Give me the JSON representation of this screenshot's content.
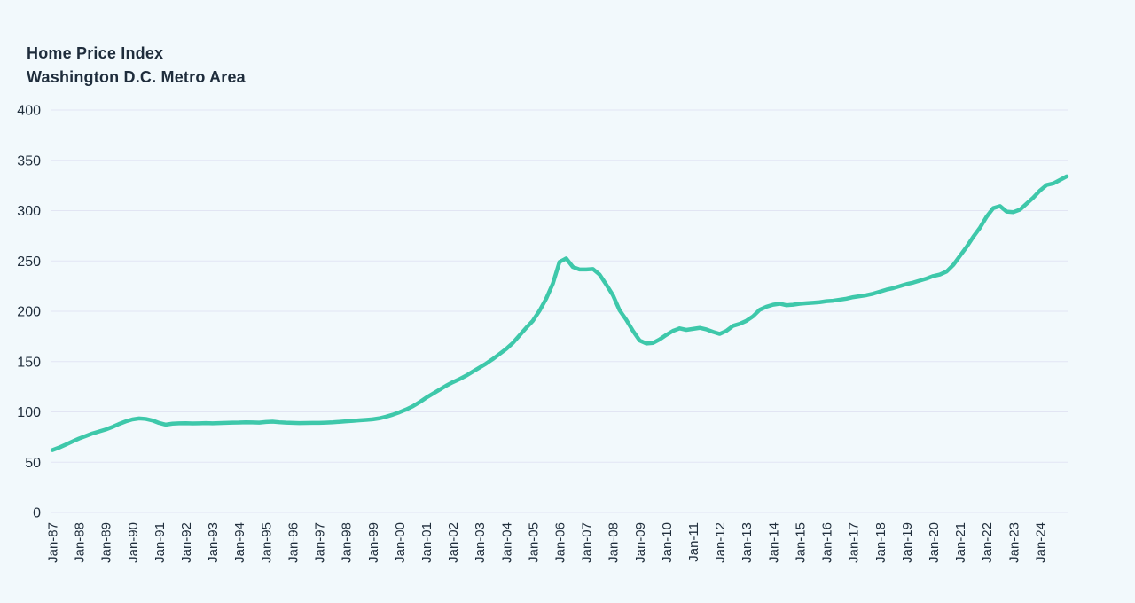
{
  "header": {
    "title": "Home Price Index",
    "subtitle": "Washington D.C. Metro Area"
  },
  "chart_data": {
    "type": "line",
    "title": "Home Price Index",
    "subtitle": "Washington D.C. Metro Area",
    "frequency": "quarterly",
    "x_start_label": "Jan-87",
    "x_end_label": "Jan-25",
    "x_tick_labels": [
      "Jan-87",
      "Jan-88",
      "Jan-89",
      "Jan-90",
      "Jan-91",
      "Jan-92",
      "Jan-93",
      "Jan-94",
      "Jan-95",
      "Jan-96",
      "Jan-97",
      "Jan-98",
      "Jan-99",
      "Jan-00",
      "Jan-01",
      "Jan-02",
      "Jan-03",
      "Jan-04",
      "Jan-05",
      "Jan-06",
      "Jan-07",
      "Jan-08",
      "Jan-09",
      "Jan-10",
      "Jan-11",
      "Jan-12",
      "Jan-13",
      "Jan-14",
      "Jan-15",
      "Jan-16",
      "Jan-17",
      "Jan-18",
      "Jan-19",
      "Jan-20",
      "Jan-21",
      "Jan-22",
      "Jan-23",
      "Jan-24"
    ],
    "ticks_per_year": 4,
    "y_ticks": [
      0,
      50,
      100,
      150,
      200,
      250,
      300,
      350,
      400
    ],
    "ylim": [
      0,
      400
    ],
    "grid": "horizontal-only",
    "legend": "none",
    "line_color": "#3ec8aa",
    "gridline_color": "#e2e5f3",
    "label_color": "#202e3c",
    "background_color": "#f2f9fc",
    "series": [
      {
        "name": "Home Price Index",
        "values": [
          62,
          64.5,
          67.5,
          70.5,
          73.5,
          76,
          78.5,
          80.5,
          82.5,
          85,
          88,
          90.5,
          92.5,
          93.5,
          93,
          91.5,
          89,
          87.3,
          88.3,
          88.7,
          88.8,
          88.5,
          88.7,
          88.9,
          88.7,
          88.9,
          89.1,
          89.3,
          89.4,
          89.7,
          89.5,
          89.3,
          90,
          90.3,
          89.7,
          89.3,
          89.1,
          88.9,
          89,
          89.1,
          89.1,
          89.3,
          89.6,
          90.1,
          90.6,
          91.1,
          91.6,
          92.1,
          92.6,
          93.6,
          95.2,
          97.2,
          99.6,
          102.3,
          105.5,
          109.5,
          114,
          118,
          122,
          126,
          129.5,
          132.5,
          136,
          140,
          144,
          148,
          152.5,
          157.5,
          162.5,
          168.5,
          176,
          183.5,
          190.5,
          200.5,
          212.5,
          227.5,
          249,
          252.5,
          244,
          241.5,
          241.5,
          242,
          236.5,
          226.5,
          216,
          201,
          191.5,
          180.5,
          171,
          168,
          168.5,
          172,
          176.5,
          180.5,
          183,
          181.5,
          182.5,
          183.5,
          182,
          179.5,
          177.5,
          180.5,
          185.5,
          187.5,
          190.5,
          195,
          201.5,
          204.5,
          206.5,
          207.5,
          206,
          206.5,
          207.5,
          208,
          208.5,
          209,
          210,
          210.5,
          211.5,
          212.5,
          214,
          215,
          216,
          217.5,
          219.5,
          221.5,
          223,
          225,
          227,
          228.5,
          230.5,
          232.5,
          235,
          236.5,
          239.5,
          246,
          255,
          264,
          274,
          283,
          294,
          302.5,
          304.5,
          299,
          298.5,
          301,
          307,
          313,
          320,
          325.5,
          327,
          330.5,
          334
        ]
      }
    ]
  }
}
